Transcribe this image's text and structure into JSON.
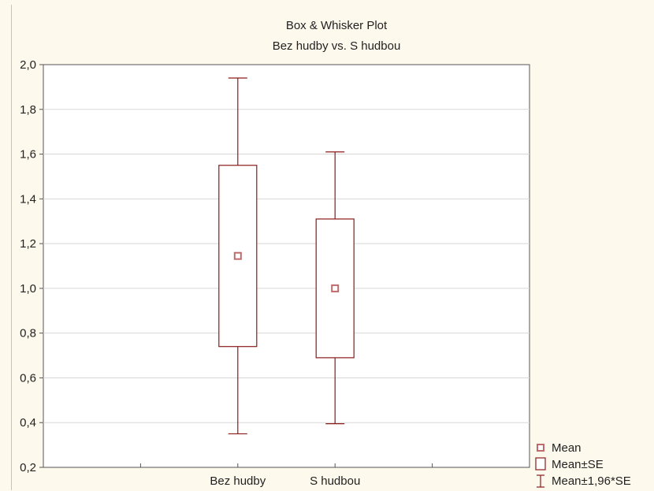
{
  "chart_data": {
    "type": "box",
    "title": "Box & Whisker Plot",
    "subtitle": "Bez hudby vs. S hudbou",
    "xlabel": "",
    "ylabel": "",
    "ylim": [
      0.2,
      2.0
    ],
    "yticks": [
      "0,2",
      "0,4",
      "0,6",
      "0,8",
      "1,0",
      "1,2",
      "1,4",
      "1,6",
      "1,8",
      "2,0"
    ],
    "ytick_values": [
      0.2,
      0.4,
      0.6,
      0.8,
      1.0,
      1.2,
      1.4,
      1.6,
      1.8,
      2.0
    ],
    "grid": true,
    "categories": [
      "Bez hudby",
      "S hudbou"
    ],
    "series": [
      {
        "category": "Bez hudby",
        "mean": 1.145,
        "se_low": 0.74,
        "se_high": 1.55,
        "ci_low": 0.35,
        "ci_high": 1.94
      },
      {
        "category": "S hudbou",
        "mean": 1.0,
        "se_low": 0.69,
        "se_high": 1.31,
        "ci_low": 0.395,
        "ci_high": 1.61
      }
    ],
    "legend": {
      "placement": "bottom-right",
      "entries": [
        "Mean",
        "Mean±SE",
        "Mean±1,96*SE"
      ]
    },
    "colors": {
      "box": "#8b1a1a",
      "mean_marker": "#c06a6a",
      "grid": "#d8d8d8",
      "plot_bg": "#ffffff",
      "frame_bg": "#fdf9ec"
    }
  }
}
